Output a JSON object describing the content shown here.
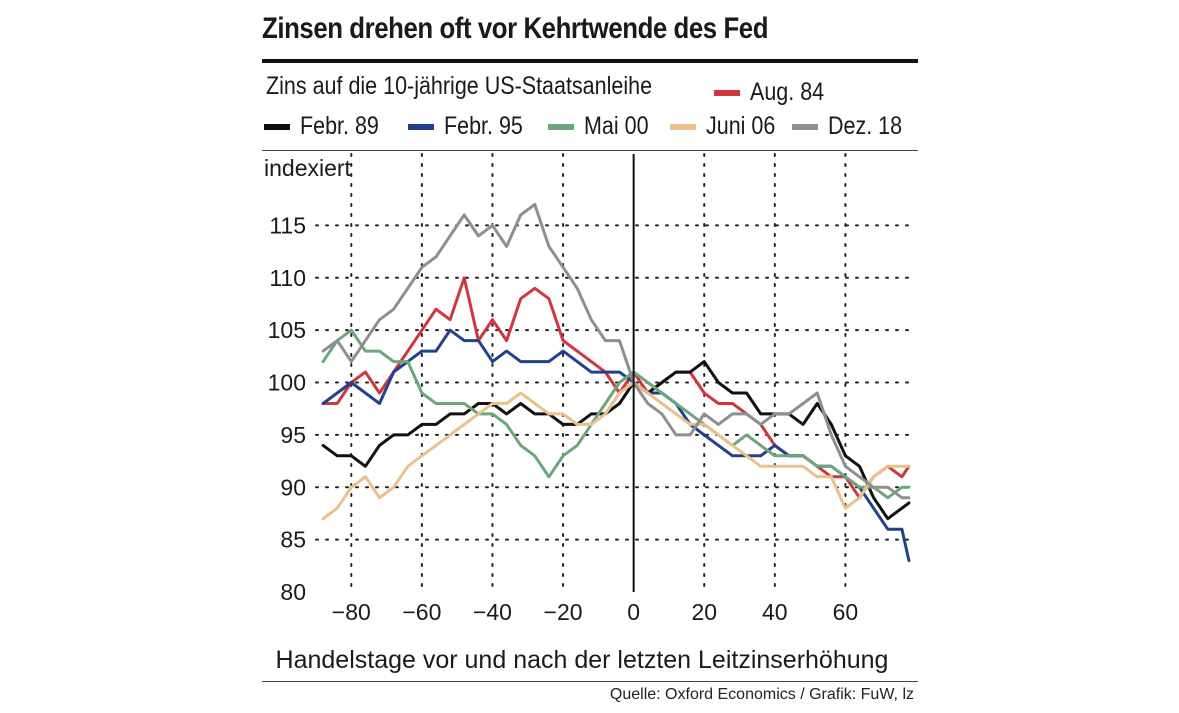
{
  "title": "Zinsen drehen oft vor Kehrtwende des Fed",
  "subtitle": "Zins auf die 10-jährige US-Staatsanleihe",
  "source": "Quelle: Oxford Economics / Grafik: FuW, lz",
  "legend": [
    {
      "label": "Aug. 84",
      "color": "#d1363f"
    },
    {
      "label": "Febr. 89",
      "color": "#111111"
    },
    {
      "label": "Febr. 95",
      "color": "#22408f"
    },
    {
      "label": "Mai 00",
      "color": "#6aa77b"
    },
    {
      "label": "Juni 06",
      "color": "#ecbf8c"
    },
    {
      "label": "Dez. 18",
      "color": "#8f8f8f"
    }
  ],
  "chart_data": {
    "type": "line",
    "title": "Zinsen drehen oft vor Kehrtwende des Fed",
    "ylabel": "indexiert",
    "xlabel": "Handelstage vor und nach der letzten Leitzinserhöhung",
    "xlim": [
      -90,
      80
    ],
    "ylim": [
      80,
      118
    ],
    "xticks": [
      -80,
      -60,
      -40,
      -20,
      0,
      20,
      40,
      60
    ],
    "xtick_labels": [
      "−80",
      "−60",
      "−40",
      "−20",
      "0",
      "20",
      "40",
      "60"
    ],
    "yticks": [
      80,
      85,
      90,
      95,
      100,
      105,
      110,
      115
    ],
    "ytick_labels": [
      "80",
      "85",
      "90",
      "95",
      "100",
      "105",
      "110",
      "115"
    ],
    "series": [
      {
        "name": "Aug. 84",
        "color": "#d1363f",
        "x": [
          -88,
          -84,
          -80,
          -76,
          -72,
          -68,
          -64,
          -60,
          -56,
          -52,
          -48,
          -44,
          -40,
          -36,
          -32,
          -28,
          -24,
          -20,
          -16,
          -12,
          -8,
          -4,
          0,
          4,
          8,
          12,
          16,
          20,
          24,
          28,
          32,
          36,
          40,
          44,
          48,
          52,
          56,
          60,
          64,
          68,
          72,
          76,
          78
        ],
        "y": [
          98,
          98,
          100,
          101,
          99,
          101,
          103,
          105,
          107,
          106,
          110,
          104,
          106,
          104,
          108,
          109,
          108,
          104,
          103,
          102,
          101,
          99,
          101,
          99,
          100,
          101,
          101,
          99,
          98,
          98,
          97,
          96,
          94,
          93,
          93,
          92,
          91,
          91,
          89,
          91,
          92,
          91,
          92
        ]
      },
      {
        "name": "Febr. 89",
        "color": "#111111",
        "x": [
          -88,
          -84,
          -80,
          -76,
          -72,
          -68,
          -64,
          -60,
          -56,
          -52,
          -48,
          -44,
          -40,
          -36,
          -32,
          -28,
          -24,
          -20,
          -16,
          -12,
          -8,
          -4,
          0,
          4,
          8,
          12,
          16,
          20,
          24,
          28,
          32,
          36,
          40,
          44,
          48,
          52,
          56,
          60,
          64,
          68,
          72,
          76,
          78
        ],
        "y": [
          94,
          93,
          93,
          92,
          94,
          95,
          95,
          96,
          96,
          97,
          97,
          98,
          98,
          97,
          98,
          97,
          97,
          96,
          96,
          97,
          97,
          98,
          100,
          99,
          100,
          101,
          101,
          102,
          100,
          99,
          99,
          97,
          97,
          97,
          96,
          98,
          96,
          93,
          92,
          89,
          87,
          88,
          88.5
        ]
      },
      {
        "name": "Febr. 95",
        "color": "#22408f",
        "x": [
          -88,
          -84,
          -80,
          -76,
          -72,
          -68,
          -64,
          -60,
          -56,
          -52,
          -48,
          -44,
          -40,
          -36,
          -32,
          -28,
          -24,
          -20,
          -16,
          -12,
          -8,
          -4,
          0,
          4,
          8,
          12,
          16,
          20,
          24,
          28,
          32,
          36,
          40,
          44,
          48,
          52,
          56,
          60,
          64,
          68,
          72,
          76,
          78
        ],
        "y": [
          98,
          99,
          100,
          99,
          98,
          101,
          102,
          103,
          103,
          105,
          104,
          104,
          102,
          103,
          102,
          102,
          102,
          103,
          102,
          101,
          101,
          101,
          100,
          99,
          99,
          98,
          96,
          95,
          94,
          93,
          93,
          93,
          94,
          93,
          93,
          92,
          92,
          91,
          90,
          88,
          86,
          86,
          83
        ]
      },
      {
        "name": "Mai 00",
        "color": "#6aa77b",
        "x": [
          -88,
          -84,
          -80,
          -76,
          -72,
          -68,
          -64,
          -60,
          -56,
          -52,
          -48,
          -44,
          -40,
          -36,
          -32,
          -28,
          -24,
          -20,
          -16,
          -12,
          -8,
          -4,
          0,
          4,
          8,
          12,
          16,
          20,
          24,
          28,
          32,
          36,
          40,
          44,
          48,
          52,
          56,
          60,
          64,
          68,
          72,
          76,
          78
        ],
        "y": [
          102,
          104,
          105,
          103,
          103,
          102,
          102,
          99,
          98,
          98,
          98,
          97,
          97,
          96,
          94,
          93,
          91,
          93,
          94,
          96,
          98,
          100,
          101,
          100,
          99,
          98,
          97,
          96,
          95,
          94,
          95,
          94,
          93,
          93,
          93,
          92,
          92,
          91,
          90,
          90,
          89,
          90,
          90
        ]
      },
      {
        "name": "Juni 06",
        "color": "#ecbf8c",
        "x": [
          -88,
          -84,
          -80,
          -76,
          -72,
          -68,
          -64,
          -60,
          -56,
          -52,
          -48,
          -44,
          -40,
          -36,
          -32,
          -28,
          -24,
          -20,
          -16,
          -12,
          -8,
          -4,
          0,
          4,
          8,
          12,
          16,
          20,
          24,
          28,
          32,
          36,
          40,
          44,
          48,
          52,
          56,
          60,
          64,
          68,
          72,
          76,
          78
        ],
        "y": [
          87,
          88,
          90,
          91,
          89,
          90,
          92,
          93,
          94,
          95,
          96,
          97,
          98,
          98,
          99,
          98,
          97,
          97,
          96,
          96,
          97,
          99,
          100,
          99,
          98,
          97,
          96,
          96,
          95,
          94,
          93,
          92,
          92,
          92,
          92,
          91,
          91,
          88,
          89,
          91,
          92,
          92,
          92
        ]
      },
      {
        "name": "Dez. 18",
        "color": "#8f8f8f",
        "x": [
          -88,
          -84,
          -80,
          -76,
          -72,
          -68,
          -64,
          -60,
          -56,
          -52,
          -48,
          -44,
          -40,
          -36,
          -32,
          -28,
          -24,
          -20,
          -16,
          -12,
          -8,
          -4,
          0,
          4,
          8,
          12,
          16,
          20,
          24,
          28,
          32,
          36,
          40,
          44,
          48,
          52,
          56,
          60,
          64,
          68,
          72,
          76,
          78
        ],
        "y": [
          103,
          104,
          102,
          104,
          106,
          107,
          109,
          111,
          112,
          114,
          116,
          114,
          115,
          113,
          116,
          117,
          113,
          111,
          109,
          106,
          104,
          104,
          100,
          98,
          97,
          95,
          95,
          97,
          96,
          97,
          97,
          96,
          97,
          97,
          98,
          99,
          95,
          92,
          91,
          90,
          90,
          89,
          89
        ]
      }
    ]
  }
}
